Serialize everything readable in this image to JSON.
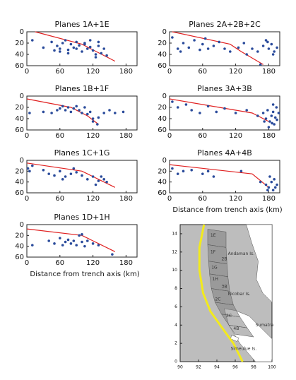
{
  "chart_data": [
    {
      "type": "scatter",
      "title": "Planes 1A+1E",
      "xlim": [
        0,
        200
      ],
      "ylim": [
        0,
        60
      ],
      "y_reversed": true,
      "xticks": [
        0,
        60,
        120,
        180
      ],
      "yticks": [
        0,
        20,
        40,
        60
      ],
      "points": {
        "color": "#2a4b9b",
        "x": [
          10,
          30,
          45,
          55,
          60,
          65,
          70,
          75,
          80,
          85,
          90,
          95,
          100,
          105,
          110,
          115,
          120,
          125,
          130,
          135,
          140,
          60,
          90,
          115,
          125,
          50,
          75,
          105,
          130,
          145
        ],
        "y": [
          15,
          28,
          18,
          25,
          30,
          20,
          15,
          32,
          22,
          28,
          18,
          24,
          35,
          20,
          30,
          27,
          33,
          40,
          25,
          38,
          30,
          35,
          30,
          15,
          45,
          33,
          38,
          22,
          18,
          42
        ]
      },
      "line": {
        "color": "#e02020",
        "x": [
          15,
          100,
          160
        ],
        "y": [
          0,
          22,
          52
        ]
      }
    },
    {
      "type": "scatter",
      "title": "Planes 2A+2B+2C",
      "xlim": [
        0,
        200
      ],
      "ylim": [
        0,
        60
      ],
      "y_reversed": true,
      "xticks": [
        0,
        60,
        120,
        180
      ],
      "yticks": [
        0,
        20,
        40,
        60
      ],
      "points": {
        "color": "#2a4b9b",
        "x": [
          5,
          15,
          25,
          35,
          45,
          55,
          60,
          70,
          80,
          90,
          100,
          110,
          125,
          135,
          140,
          150,
          160,
          170,
          175,
          180,
          185,
          190,
          195,
          165,
          178,
          188,
          20,
          65
        ],
        "y": [
          10,
          30,
          20,
          28,
          15,
          32,
          22,
          30,
          25,
          18,
          30,
          35,
          28,
          20,
          40,
          30,
          35,
          25,
          15,
          30,
          22,
          35,
          28,
          58,
          18,
          40,
          35,
          12
        ]
      },
      "line": {
        "color": "#e02020",
        "x": [
          5,
          110,
          130,
          170
        ],
        "y": [
          0,
          22,
          35,
          58
        ]
      }
    },
    {
      "type": "scatter",
      "title": "Planes 1B+1F",
      "xlim": [
        0,
        200
      ],
      "ylim": [
        0,
        60
      ],
      "y_reversed": true,
      "xticks": [
        0,
        60,
        120,
        180
      ],
      "yticks": [
        0,
        20,
        40,
        60
      ],
      "points": {
        "color": "#2a4b9b",
        "x": [
          5,
          30,
          45,
          55,
          60,
          65,
          70,
          75,
          80,
          85,
          90,
          95,
          100,
          105,
          110,
          115,
          120,
          130,
          140,
          150,
          160,
          175,
          120,
          128
        ],
        "y": [
          30,
          28,
          30,
          25,
          22,
          18,
          25,
          20,
          28,
          22,
          18,
          25,
          30,
          20,
          32,
          28,
          40,
          38,
          30,
          25,
          30,
          28,
          45,
          50
        ]
      },
      "line": {
        "color": "#e02020",
        "x": [
          0,
          80,
          110,
          130
        ],
        "y": [
          5,
          20,
          35,
          50
        ]
      }
    },
    {
      "type": "scatter",
      "title": "Planes 3A+3B",
      "xlim": [
        0,
        200
      ],
      "ylim": [
        0,
        60
      ],
      "y_reversed": true,
      "xticks": [
        0,
        60,
        120,
        180
      ],
      "yticks": [
        0,
        20,
        40,
        60
      ],
      "points": {
        "color": "#2a4b9b",
        "x": [
          5,
          15,
          30,
          40,
          55,
          70,
          85,
          100,
          120,
          140,
          160,
          170,
          175,
          178,
          182,
          185,
          188,
          190,
          192,
          195,
          198,
          180,
          186,
          194,
          172,
          188
        ],
        "y": [
          10,
          20,
          15,
          25,
          30,
          18,
          28,
          22,
          30,
          25,
          35,
          30,
          40,
          25,
          45,
          35,
          28,
          50,
          38,
          42,
          30,
          55,
          48,
          20,
          45,
          15
        ]
      },
      "line": {
        "color": "#e02020",
        "x": [
          0,
          150,
          180
        ],
        "y": [
          5,
          30,
          45
        ]
      }
    },
    {
      "type": "scatter",
      "title": "Planes 1C+1G",
      "xlim": [
        0,
        200
      ],
      "ylim": [
        0,
        60
      ],
      "y_reversed": true,
      "xticks": [
        0,
        60,
        120,
        180
      ],
      "yticks": [
        0,
        20,
        40,
        60
      ],
      "points": {
        "color": "#2a4b9b",
        "x": [
          2,
          5,
          10,
          30,
          40,
          50,
          60,
          70,
          80,
          90,
          100,
          110,
          120,
          130,
          140,
          145,
          125,
          135,
          65,
          85
        ],
        "y": [
          15,
          20,
          10,
          18,
          25,
          28,
          20,
          30,
          25,
          22,
          28,
          35,
          30,
          38,
          35,
          40,
          45,
          30,
          35,
          15
        ]
      },
      "line": {
        "color": "#e02020",
        "x": [
          0,
          100,
          160
        ],
        "y": [
          5,
          20,
          50
        ]
      }
    },
    {
      "type": "scatter",
      "title": "Planes 4A+4B",
      "xlabel": "Distance from trench axis (km)",
      "xlim": [
        0,
        200
      ],
      "ylim": [
        0,
        60
      ],
      "y_reversed": true,
      "xticks": [
        0,
        60,
        120,
        180
      ],
      "yticks": [
        0,
        20,
        40,
        60
      ],
      "points": {
        "color": "#2a4b9b",
        "x": [
          5,
          15,
          25,
          40,
          60,
          70,
          80,
          130,
          165,
          175,
          180,
          185,
          188,
          190,
          192,
          195,
          182,
          178
        ],
        "y": [
          15,
          25,
          20,
          18,
          25,
          20,
          30,
          20,
          40,
          45,
          50,
          40,
          55,
          35,
          50,
          45,
          30,
          55
        ]
      },
      "line": {
        "color": "#e02020",
        "x": [
          0,
          150,
          180
        ],
        "y": [
          8,
          25,
          50
        ]
      }
    },
    {
      "type": "scatter",
      "title": "Planes 1D+1H",
      "xlabel": "Distance from trench axis (km)",
      "xlim": [
        0,
        200
      ],
      "ylim": [
        0,
        60
      ],
      "y_reversed": true,
      "xticks": [
        0,
        60,
        120,
        180
      ],
      "yticks": [
        0,
        20,
        40,
        60
      ],
      "points": {
        "color": "#2a4b9b",
        "x": [
          10,
          40,
          50,
          60,
          65,
          70,
          75,
          80,
          85,
          90,
          95,
          100,
          105,
          110,
          120,
          130,
          100,
          155
        ],
        "y": [
          38,
          30,
          35,
          25,
          38,
          32,
          28,
          35,
          30,
          38,
          20,
          32,
          40,
          30,
          35,
          38,
          18,
          55
        ]
      },
      "line": {
        "color": "#e02020",
        "x": [
          0,
          100,
          160
        ],
        "y": [
          8,
          20,
          50
        ]
      }
    },
    {
      "type": "map",
      "xlim": [
        90,
        100
      ],
      "ylim": [
        0,
        15
      ],
      "xticks": [
        90,
        92,
        94,
        96,
        98,
        100
      ],
      "yticks": [
        0,
        2,
        4,
        6,
        8,
        10,
        12,
        14
      ],
      "annotations": [
        "Andaman Is.",
        "Nicobar Is.",
        "Sumatra",
        "Simeulue Is.",
        "1E",
        "1F",
        "1G",
        "1H",
        "2B",
        "3B",
        "2C",
        "3C",
        "4B"
      ]
    }
  ]
}
